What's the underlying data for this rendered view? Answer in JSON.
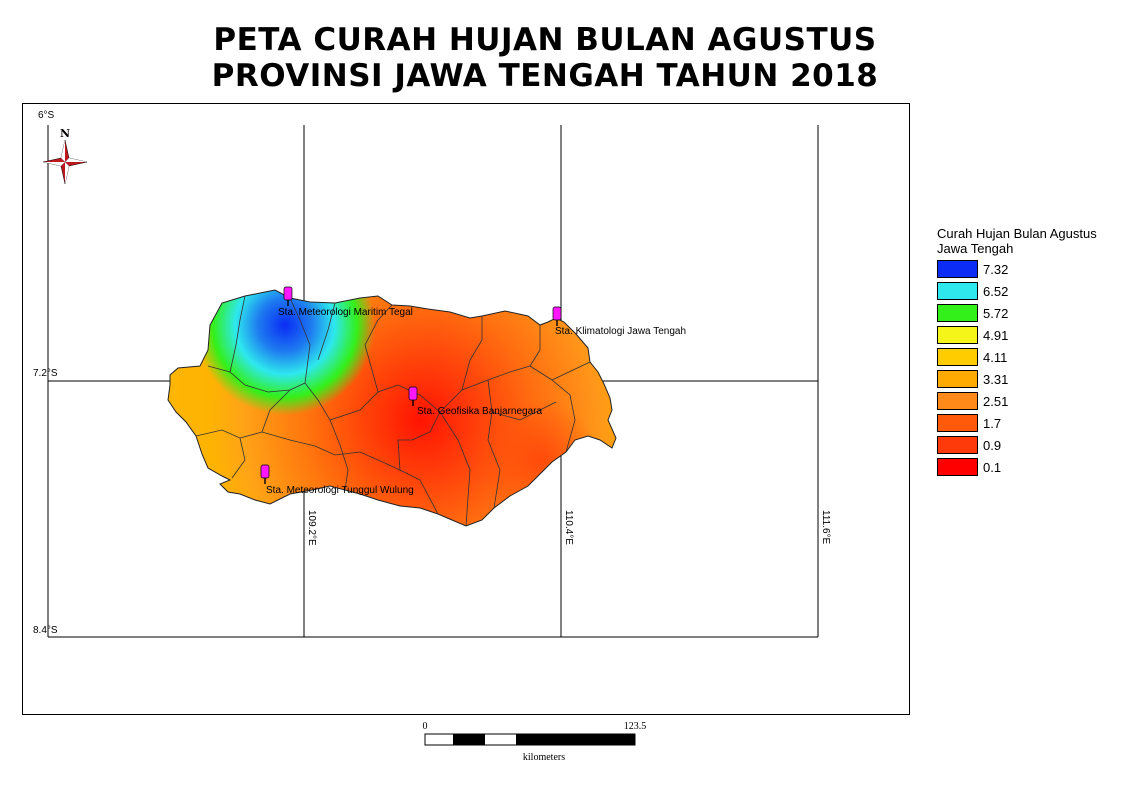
{
  "map": {
    "title_line1": "PETA CURAH HUJAN BULAN AGUSTUS",
    "title_line2": "PROVINSI JAWA TENGAH TAHUN 2018",
    "north_label": "N",
    "graticule": {
      "lat_labels": [
        "6°S",
        "7.2°S",
        "8.4°S"
      ],
      "lon_labels": [
        "109.2°E",
        "110.4°E",
        "111.6°E"
      ]
    },
    "stations": [
      {
        "name": "Sta. Meteorologi Maritim Tegal"
      },
      {
        "name": "Sta. Klimatologi Jawa Tengah"
      },
      {
        "name": "Sta. Geofisika Banjarnegara"
      },
      {
        "name": "Sta. Meteorologi Tunggul Wulung"
      }
    ],
    "legend": {
      "title": "Curah Hujan Bulan Agustus Jawa Tengah",
      "items": [
        {
          "value": "7.32",
          "color": "#0a2cf5"
        },
        {
          "value": "6.52",
          "color": "#2ee8ee"
        },
        {
          "value": "5.72",
          "color": "#33f01a"
        },
        {
          "value": "4.91",
          "color": "#f5f51a"
        },
        {
          "value": "4.11",
          "color": "#ffcc00"
        },
        {
          "value": "3.31",
          "color": "#ffaa00"
        },
        {
          "value": "2.51",
          "color": "#ff8a1a"
        },
        {
          "value": "1.7",
          "color": "#ff5a0a"
        },
        {
          "value": "0.9",
          "color": "#ff3a0a"
        },
        {
          "value": "0.1",
          "color": "#ff0000"
        }
      ]
    },
    "scale": {
      "label_start": "0",
      "label_end": "123.5",
      "unit": "kilometers"
    }
  }
}
